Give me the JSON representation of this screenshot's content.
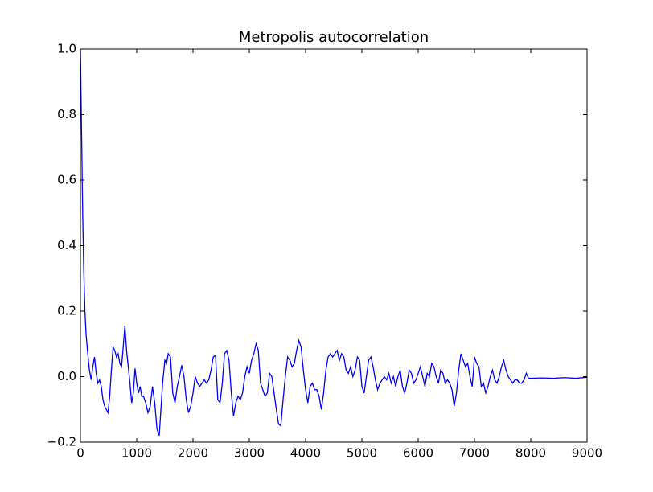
{
  "chart_data": {
    "type": "line",
    "title": "Metropolis autocorrelation",
    "x": [
      0,
      20,
      40,
      60,
      80,
      100,
      130,
      160,
      190,
      220,
      250,
      280,
      310,
      340,
      370,
      400,
      430,
      460,
      490,
      520,
      550,
      580,
      610,
      640,
      670,
      700,
      730,
      760,
      790,
      820,
      850,
      880,
      910,
      940,
      970,
      1000,
      1030,
      1060,
      1090,
      1120,
      1160,
      1200,
      1240,
      1280,
      1320,
      1360,
      1400,
      1430,
      1460,
      1500,
      1530,
      1560,
      1600,
      1640,
      1680,
      1720,
      1760,
      1800,
      1840,
      1880,
      1920,
      1960,
      2000,
      2040,
      2080,
      2120,
      2160,
      2200,
      2240,
      2280,
      2320,
      2360,
      2400,
      2440,
      2480,
      2520,
      2560,
      2600,
      2640,
      2680,
      2720,
      2760,
      2800,
      2840,
      2880,
      2920,
      2960,
      3000,
      3040,
      3080,
      3120,
      3160,
      3200,
      3240,
      3280,
      3320,
      3360,
      3400,
      3440,
      3480,
      3520,
      3560,
      3600,
      3640,
      3680,
      3720,
      3760,
      3800,
      3840,
      3880,
      3920,
      3960,
      4000,
      4040,
      4080,
      4120,
      4160,
      4200,
      4240,
      4280,
      4320,
      4360,
      4400,
      4440,
      4480,
      4520,
      4560,
      4600,
      4640,
      4680,
      4720,
      4760,
      4800,
      4840,
      4880,
      4920,
      4960,
      5000,
      5040,
      5080,
      5120,
      5160,
      5200,
      5240,
      5280,
      5320,
      5360,
      5400,
      5440,
      5480,
      5520,
      5560,
      5600,
      5640,
      5680,
      5720,
      5760,
      5800,
      5840,
      5880,
      5920,
      5960,
      6000,
      6040,
      6080,
      6120,
      6160,
      6200,
      6240,
      6280,
      6320,
      6360,
      6400,
      6440,
      6480,
      6520,
      6560,
      6600,
      6640,
      6680,
      6720,
      6760,
      6800,
      6840,
      6880,
      6920,
      6960,
      7000,
      7040,
      7080,
      7120,
      7160,
      7200,
      7240,
      7280,
      7320,
      7360,
      7400,
      7440,
      7480,
      7520,
      7560,
      7600,
      7640,
      7680,
      7720,
      7760,
      7800,
      7840,
      7880,
      7920,
      7960,
      8000,
      8200,
      8400,
      8600,
      8800,
      9000
    ],
    "values": [
      1.0,
      0.75,
      0.5,
      0.32,
      0.2,
      0.13,
      0.07,
      0.02,
      -0.01,
      0.03,
      0.06,
      0.01,
      -0.02,
      -0.01,
      -0.03,
      -0.07,
      -0.09,
      -0.1,
      -0.11,
      -0.06,
      0.02,
      0.09,
      0.08,
      0.06,
      0.07,
      0.04,
      0.03,
      0.09,
      0.155,
      0.08,
      0.03,
      -0.02,
      -0.08,
      -0.05,
      0.025,
      -0.02,
      -0.05,
      -0.03,
      -0.06,
      -0.06,
      -0.08,
      -0.11,
      -0.09,
      -0.03,
      -0.08,
      -0.16,
      -0.18,
      -0.1,
      -0.02,
      0.05,
      0.04,
      0.07,
      0.06,
      -0.05,
      -0.08,
      -0.03,
      0.0,
      0.035,
      0.0,
      -0.07,
      -0.11,
      -0.09,
      -0.05,
      0.0,
      -0.02,
      -0.03,
      -0.02,
      -0.01,
      -0.02,
      -0.01,
      0.02,
      0.06,
      0.065,
      -0.07,
      -0.08,
      -0.02,
      0.07,
      0.08,
      0.05,
      -0.05,
      -0.12,
      -0.08,
      -0.06,
      -0.07,
      -0.05,
      0.0,
      0.03,
      0.01,
      0.05,
      0.07,
      0.1,
      0.08,
      -0.02,
      -0.04,
      -0.06,
      -0.05,
      0.01,
      0.0,
      -0.05,
      -0.1,
      -0.145,
      -0.15,
      -0.07,
      0.0,
      0.06,
      0.05,
      0.03,
      0.04,
      0.08,
      0.11,
      0.09,
      0.02,
      -0.04,
      -0.08,
      -0.03,
      -0.02,
      -0.04,
      -0.04,
      -0.06,
      -0.1,
      -0.05,
      0.02,
      0.06,
      0.07,
      0.06,
      0.07,
      0.08,
      0.05,
      0.07,
      0.06,
      0.02,
      0.01,
      0.03,
      0.0,
      0.02,
      0.06,
      0.05,
      -0.03,
      -0.05,
      0.0,
      0.05,
      0.06,
      0.03,
      -0.01,
      -0.04,
      -0.02,
      -0.01,
      0.0,
      -0.01,
      0.01,
      -0.02,
      0.0,
      -0.03,
      0.0,
      0.02,
      -0.03,
      -0.05,
      -0.02,
      0.02,
      0.01,
      -0.02,
      -0.01,
      0.01,
      0.03,
      0.0,
      -0.03,
      0.01,
      0.0,
      0.04,
      0.03,
      0.0,
      -0.02,
      0.02,
      0.01,
      -0.02,
      -0.01,
      -0.02,
      -0.04,
      -0.09,
      -0.05,
      0.02,
      0.07,
      0.05,
      0.03,
      0.04,
      0.0,
      -0.03,
      0.06,
      0.04,
      0.03,
      -0.03,
      -0.02,
      -0.05,
      -0.03,
      0.0,
      0.02,
      -0.01,
      -0.02,
      0.0,
      0.03,
      0.05,
      0.02,
      0.0,
      -0.01,
      -0.02,
      -0.01,
      -0.01,
      -0.02,
      -0.02,
      -0.01,
      0.01,
      -0.005,
      -0.005,
      -0.004,
      -0.005,
      -0.003,
      -0.005,
      -0.002
    ],
    "color": "#0000ff",
    "xlim": [
      0,
      9000
    ],
    "xticks": [
      0,
      1000,
      2000,
      3000,
      4000,
      5000,
      6000,
      7000,
      8000,
      9000
    ],
    "ylim": [
      -0.2,
      1.0
    ],
    "yticks": [
      {
        "value": -0.2,
        "label": "−0.2"
      },
      {
        "value": 0,
        "label": "0.0"
      },
      0.2,
      0.4,
      0.6,
      0.8,
      {
        "value": 1,
        "label": "1.0"
      }
    ],
    "grid": false
  }
}
